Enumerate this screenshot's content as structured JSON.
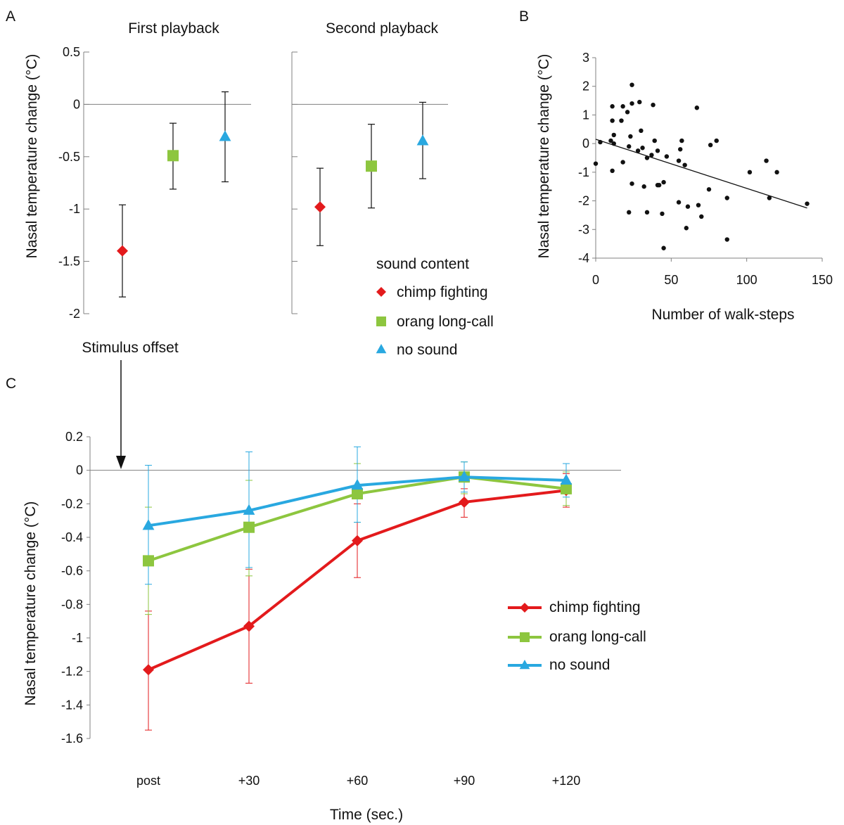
{
  "colors": {
    "chimp": "#e31a1c",
    "orang": "#8dc63f",
    "none": "#29a8e0",
    "axis": "#808080",
    "ink": "#111111"
  },
  "chart_data": [
    {
      "panel_label": "A",
      "type": "scatter",
      "error_bars": true,
      "ylabel": "Nasal temperature change (°C)",
      "ylim": [
        -2,
        0.5
      ],
      "yticks": [
        "0.5",
        "0",
        "-0.5",
        "-1",
        "-1.5",
        "-2"
      ],
      "reference_line_at": 0,
      "subplots": [
        {
          "title": "First playback",
          "points": [
            {
              "series": "chimp fighting",
              "marker": "diamond",
              "y": -1.4,
              "err_low": -1.84,
              "err_high": -0.96
            },
            {
              "series": "orang long-call",
              "marker": "square",
              "y": -0.49,
              "err_low": -0.81,
              "err_high": -0.18
            },
            {
              "series": "no sound",
              "marker": "triangle",
              "y": -0.31,
              "err_low": -0.74,
              "err_high": 0.12
            }
          ]
        },
        {
          "title": "Second playback",
          "points": [
            {
              "series": "chimp fighting",
              "marker": "diamond",
              "y": -0.98,
              "err_low": -1.35,
              "err_high": -0.61
            },
            {
              "series": "orang long-call",
              "marker": "square",
              "y": -0.59,
              "err_low": -0.99,
              "err_high": -0.19
            },
            {
              "series": "no sound",
              "marker": "triangle",
              "y": -0.35,
              "err_low": -0.71,
              "err_high": 0.02
            }
          ]
        }
      ],
      "legend": {
        "title": "sound content",
        "placement": "bottom-right",
        "items": [
          {
            "label": "chimp fighting",
            "marker": "diamond"
          },
          {
            "label": "orang long-call",
            "marker": "square"
          },
          {
            "label": "no sound",
            "marker": "triangle"
          }
        ]
      }
    },
    {
      "panel_label": "B",
      "type": "scatter",
      "xlabel": "Number of walk-steps",
      "ylabel": "Nasal temperature change (°C)",
      "xlim": [
        0,
        150
      ],
      "ylim": [
        -4,
        3
      ],
      "xticks": [
        "0",
        "50",
        "100",
        "150"
      ],
      "yticks": [
        "3",
        "2",
        "1",
        "0",
        "-1",
        "-2",
        "-3",
        "-4"
      ],
      "points": [
        [
          0,
          -0.7
        ],
        [
          3,
          0.05
        ],
        [
          10,
          0.1
        ],
        [
          11,
          1.3
        ],
        [
          11,
          0.8
        ],
        [
          11,
          -0.95
        ],
        [
          12,
          0.3
        ],
        [
          12,
          0
        ],
        [
          17,
          0.8
        ],
        [
          18,
          1.3
        ],
        [
          18,
          -0.65
        ],
        [
          21,
          1.1
        ],
        [
          22,
          -0.1
        ],
        [
          22,
          -2.4
        ],
        [
          23,
          0.25
        ],
        [
          24,
          1.4
        ],
        [
          24,
          2.05
        ],
        [
          24,
          -1.4
        ],
        [
          28,
          -0.25
        ],
        [
          29,
          1.45
        ],
        [
          30,
          0.45
        ],
        [
          31,
          -0.15
        ],
        [
          32,
          -1.5
        ],
        [
          34,
          -0.5
        ],
        [
          34,
          -2.4
        ],
        [
          37,
          -0.4
        ],
        [
          38,
          1.35
        ],
        [
          39,
          0.1
        ],
        [
          41,
          -1.45
        ],
        [
          41,
          -0.25
        ],
        [
          42,
          -1.45
        ],
        [
          44,
          -2.45
        ],
        [
          45,
          -3.65
        ],
        [
          45,
          -1.35
        ],
        [
          47,
          -0.45
        ],
        [
          55,
          -0.6
        ],
        [
          55,
          -2.05
        ],
        [
          56,
          -0.2
        ],
        [
          57,
          0.1
        ],
        [
          59,
          -0.75
        ],
        [
          60,
          -2.95
        ],
        [
          61,
          -2.2
        ],
        [
          67,
          1.25
        ],
        [
          68,
          -2.15
        ],
        [
          70,
          -2.55
        ],
        [
          75,
          -1.6
        ],
        [
          76,
          -0.05
        ],
        [
          80,
          0.1
        ],
        [
          87,
          -1.9
        ],
        [
          87,
          -3.35
        ],
        [
          102,
          -1.0
        ],
        [
          113,
          -0.6
        ],
        [
          115,
          -1.9
        ],
        [
          120,
          -1.0
        ],
        [
          140,
          -2.1
        ]
      ],
      "trendline": {
        "x": [
          0,
          140
        ],
        "y": [
          0.15,
          -2.25
        ]
      }
    },
    {
      "panel_label": "C",
      "type": "line",
      "error_bars": true,
      "xlabel": "Time (sec.)",
      "ylabel": "Nasal temperature change (°C)",
      "categories": [
        "post",
        "+30",
        "+60",
        "+90",
        "+120"
      ],
      "ylim": [
        -1.6,
        0.2
      ],
      "yticks": [
        "0.2",
        "0",
        "-0.2",
        "-0.4",
        "-0.6",
        "-0.8",
        "-1",
        "-1.2",
        "-1.4",
        "-1.6"
      ],
      "reference_line_at": 0,
      "annotation": "Stimulus offset",
      "legend_placement": "bottom-right",
      "series": [
        {
          "name": "chimp fighting",
          "marker": "diamond",
          "values": [
            -1.19,
            -0.93,
            -0.42,
            -0.19,
            -0.12
          ],
          "err_low": [
            -1.55,
            -1.27,
            -0.64,
            -0.28,
            -0.22
          ],
          "err_high": [
            -0.84,
            -0.59,
            -0.2,
            -0.11,
            -0.02
          ]
        },
        {
          "name": "orang long-call",
          "marker": "square",
          "values": [
            -0.54,
            -0.34,
            -0.14,
            -0.04,
            -0.11
          ],
          "err_low": [
            -0.86,
            -0.63,
            -0.31,
            -0.14,
            -0.21
          ],
          "err_high": [
            -0.22,
            -0.06,
            0.04,
            0.05,
            -0.01
          ]
        },
        {
          "name": "no sound",
          "marker": "triangle",
          "values": [
            -0.33,
            -0.24,
            -0.09,
            -0.04,
            -0.06
          ],
          "err_low": [
            -0.68,
            -0.58,
            -0.31,
            -0.13,
            -0.16
          ],
          "err_high": [
            0.03,
            0.11,
            0.14,
            0.05,
            0.04
          ]
        }
      ]
    }
  ]
}
